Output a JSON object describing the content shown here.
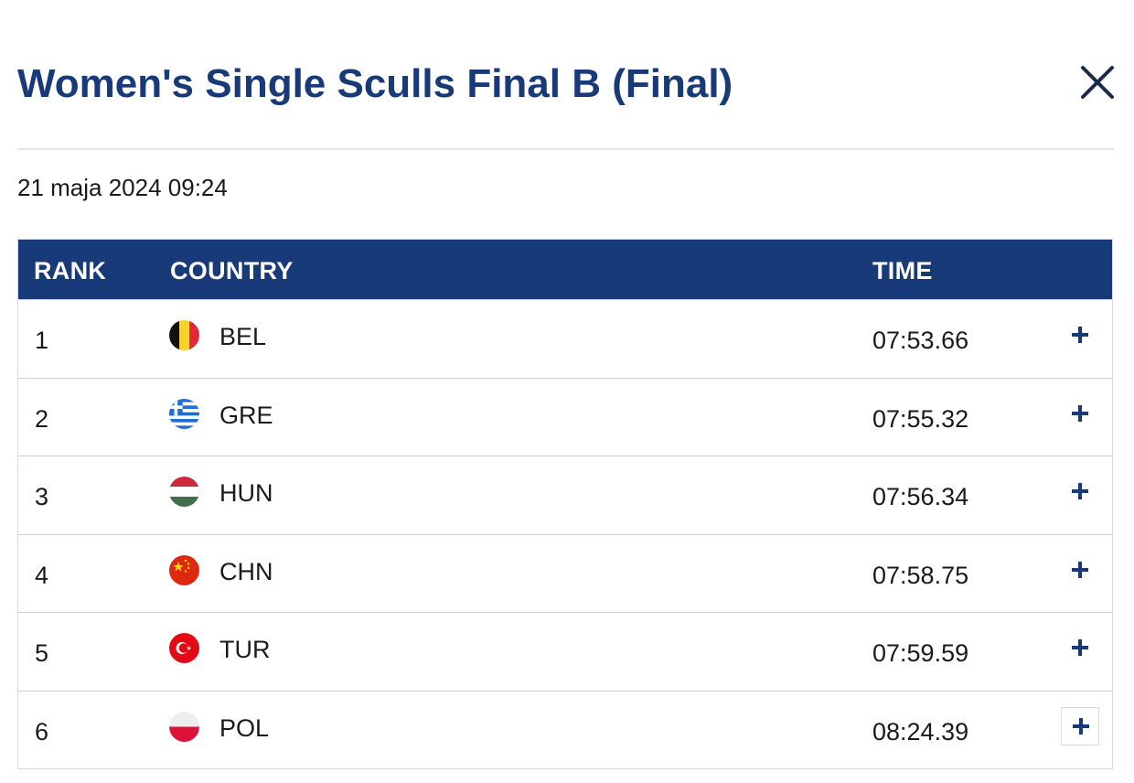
{
  "modal": {
    "title": "Women's Single Sculls Final B (Final)",
    "close_icon": "close-icon",
    "datetime": "21 maja 2024 09:24"
  },
  "table": {
    "headers": {
      "rank": "RANK",
      "country": "COUNTRY",
      "time": "TIME"
    },
    "rows": [
      {
        "rank": "1",
        "country": "BEL",
        "time": "07:53.66",
        "flag_icon": "belgium-flag-icon",
        "expand_icon": "plus-icon"
      },
      {
        "rank": "2",
        "country": "GRE",
        "time": "07:55.32",
        "flag_icon": "greece-flag-icon",
        "expand_icon": "plus-icon"
      },
      {
        "rank": "3",
        "country": "HUN",
        "time": "07:56.34",
        "flag_icon": "hungary-flag-icon",
        "expand_icon": "plus-icon"
      },
      {
        "rank": "4",
        "country": "CHN",
        "time": "07:58.75",
        "flag_icon": "china-flag-icon",
        "expand_icon": "plus-icon"
      },
      {
        "rank": "5",
        "country": "TUR",
        "time": "07:59.59",
        "flag_icon": "turkey-flag-icon",
        "expand_icon": "plus-icon"
      },
      {
        "rank": "6",
        "country": "POL",
        "time": "08:24.39",
        "flag_icon": "poland-flag-icon",
        "expand_icon": "plus-icon"
      }
    ]
  },
  "colors": {
    "brand_navy": "#183a78",
    "header_text": "#ffffff",
    "row_border": "#c8d0e0"
  }
}
